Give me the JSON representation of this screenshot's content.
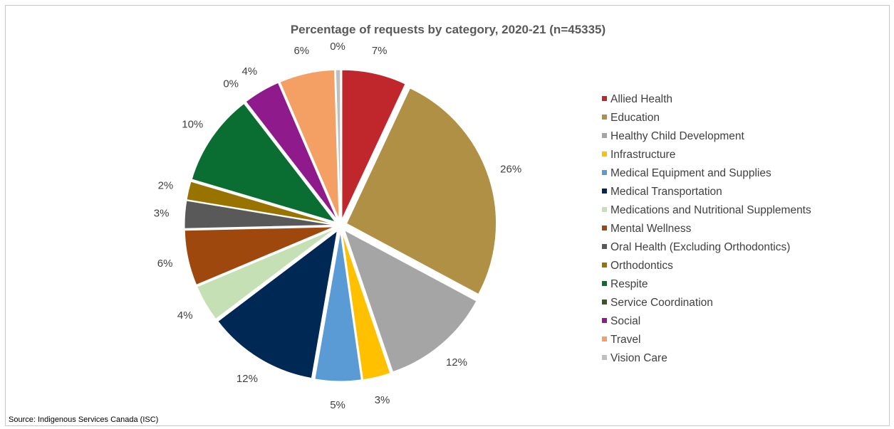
{
  "chart_data": {
    "type": "pie",
    "title": "Percentage of requests by category, 2020-21 (n=45335)",
    "start_angle_deg": 0,
    "direction": "clockwise",
    "legend_position": "right",
    "slices": [
      {
        "name": "Allied Health",
        "value": 7,
        "label": "7%",
        "color": "#c0272d",
        "exploded": true
      },
      {
        "name": "Education",
        "value": 26,
        "label": "26%",
        "color": "#b09044",
        "exploded": true
      },
      {
        "name": "Healthy Child Development",
        "value": 12,
        "label": "12%",
        "color": "#a5a5a5",
        "exploded": true
      },
      {
        "name": "Infrastructure",
        "value": 3,
        "label": "3%",
        "color": "#ffc000",
        "exploded": true
      },
      {
        "name": "Medical Equipment and Supplies",
        "value": 5,
        "label": "5%",
        "color": "#5b9bd5",
        "exploded": true
      },
      {
        "name": "Medical Transportation",
        "value": 12,
        "label": "12%",
        "color": "#002855",
        "exploded": true
      },
      {
        "name": "Medications and Nutritional Supplements",
        "value": 4,
        "label": "4%",
        "color": "#c5e0b4",
        "exploded": true
      },
      {
        "name": "Mental Wellness",
        "value": 6,
        "label": "6%",
        "color": "#9e480e",
        "exploded": true
      },
      {
        "name": "Oral Health (Excluding Orthodontics)",
        "value": 3,
        "label": "3%",
        "color": "#595959",
        "exploded": true
      },
      {
        "name": "Orthodontics",
        "value": 2,
        "label": "2%",
        "color": "#997300",
        "exploded": true
      },
      {
        "name": "Respite",
        "value": 10,
        "label": "10%",
        "color": "#0a6e32",
        "exploded": true
      },
      {
        "name": "Service Coordination",
        "value": 0,
        "label": "0%",
        "color": "#385723",
        "exploded": true
      },
      {
        "name": "Social",
        "value": 4,
        "label": "4%",
        "color": "#8e1a8c",
        "exploded": true
      },
      {
        "name": "Travel",
        "value": 6,
        "label": "6%",
        "color": "#f4a064",
        "exploded": true
      },
      {
        "name": "Vision Care",
        "value": 0.5,
        "label": "0%",
        "color": "#bfbfbf",
        "exploded": true
      }
    ]
  },
  "source_note": "Source: Indigenous Services Canada (ISC)"
}
